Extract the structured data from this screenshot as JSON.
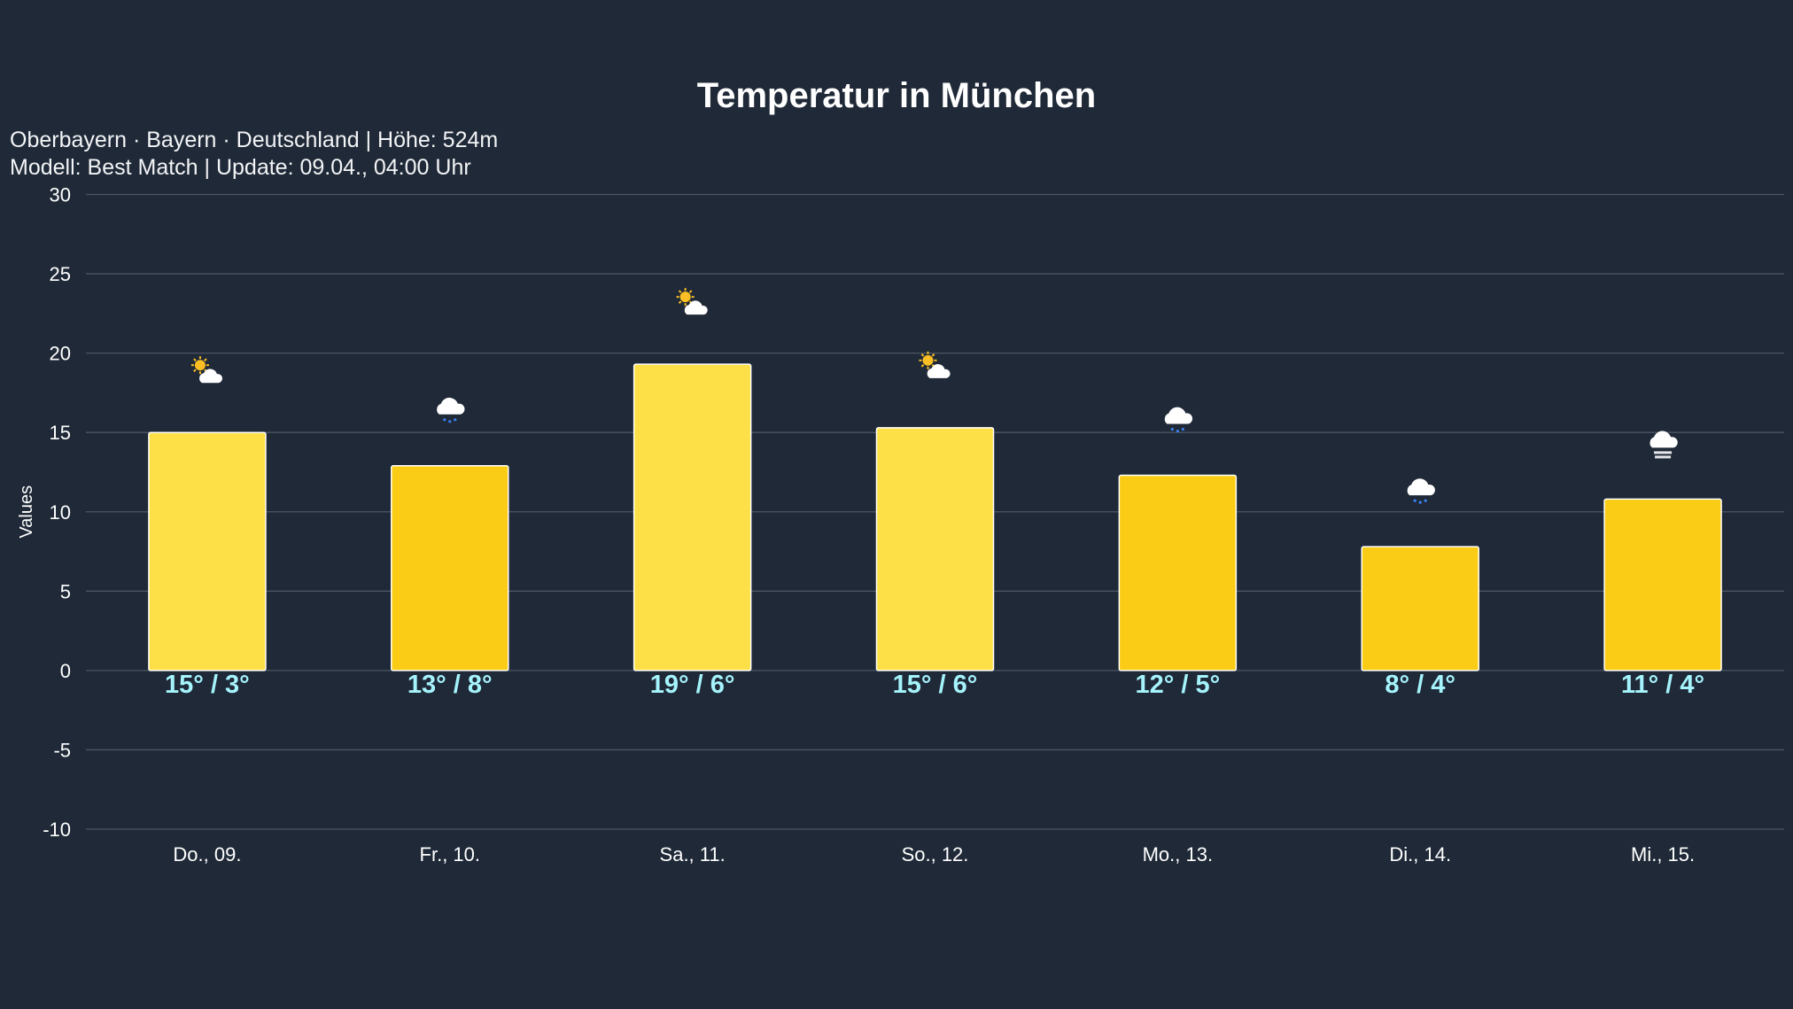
{
  "chart_data": {
    "type": "bar",
    "title": "Temperatur in München",
    "subtitle_lines": [
      "Oberbayern · Bayern · Deutschland | Höhe: 524m",
      "Modell: Best Match | Update: 09.04., 04:00 Uhr"
    ],
    "xlabel": "",
    "ylabel": "Values",
    "ylim": [
      -10,
      30
    ],
    "yticks": [
      30,
      25,
      20,
      15,
      10,
      5,
      0,
      -5,
      -10
    ],
    "grid": true,
    "categories": [
      "Do., 09.",
      "Fr., 10.",
      "Sa., 11.",
      "So., 12.",
      "Mo., 13.",
      "Di., 14.",
      "Mi., 15."
    ],
    "values": [
      15.0,
      12.9,
      19.3,
      15.3,
      12.3,
      7.8,
      10.8
    ],
    "data_labels": [
      "15° / 3°",
      "13° / 8°",
      "19° / 6°",
      "15° / 6°",
      "12° / 5°",
      "8° / 4°",
      "11° / 4°"
    ],
    "weather_icons": [
      "partly-cloudy",
      "rain",
      "partly-cloudy",
      "partly-cloudy",
      "rain",
      "rain",
      "fog"
    ],
    "bar_colors": [
      "#fde047",
      "#facc15",
      "#fde047",
      "#fde047",
      "#facc15",
      "#facc15",
      "#facc15"
    ],
    "colors": {
      "background": "#1f2937",
      "grid": "#4b5563",
      "label": "#a5f3fc",
      "text": "#ffffff"
    }
  }
}
